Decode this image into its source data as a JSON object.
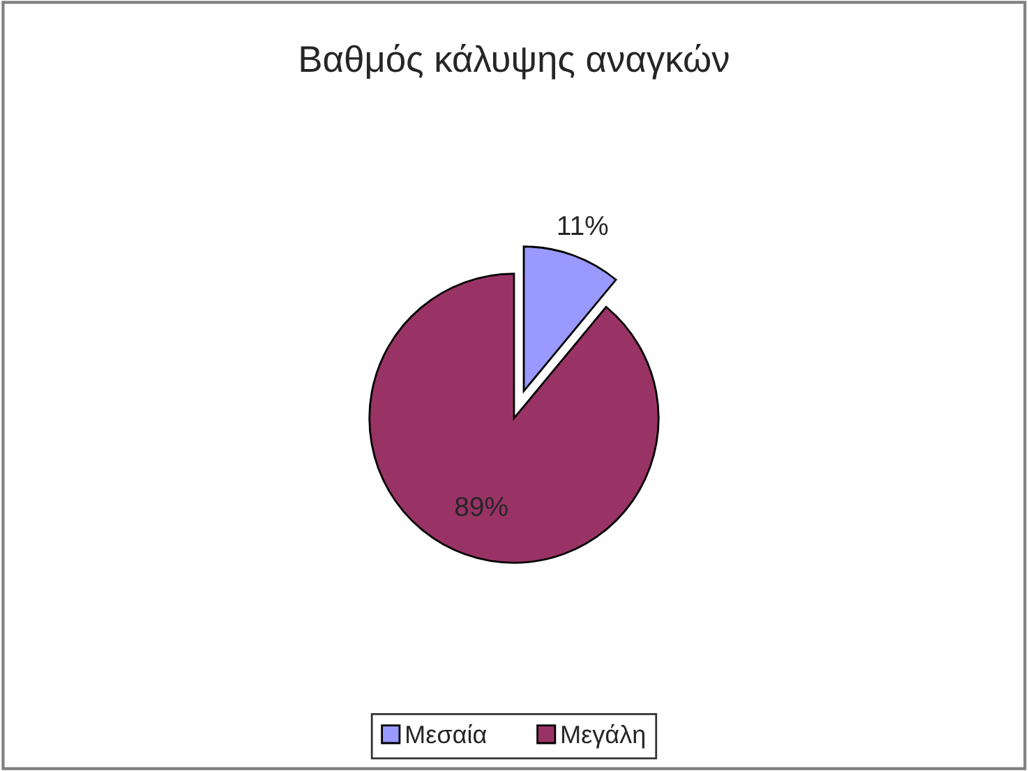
{
  "chart_data": {
    "type": "pie",
    "title": "Βαθμός κάλυψης αναγκών",
    "categories": [
      "Μεσαία",
      "Μεγάλη"
    ],
    "values": [
      11,
      89
    ],
    "colors": [
      "#9999ff",
      "#993366"
    ],
    "value_labels": [
      "11%",
      "89%"
    ],
    "legend": "bottom"
  }
}
